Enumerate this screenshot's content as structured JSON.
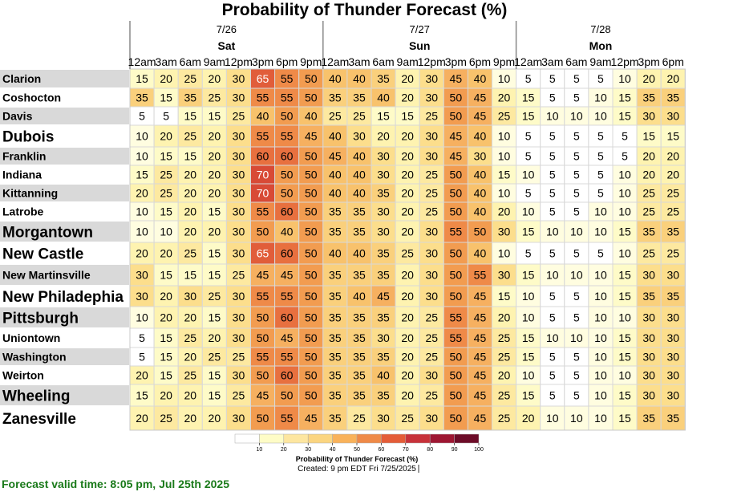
{
  "chart_data": {
    "type": "heatmap",
    "title": "Probability of Thunder Forecast (%)",
    "days": [
      {
        "date": "7/26",
        "name": "Sat",
        "hours": [
          "12am",
          "3am",
          "6am",
          "9am",
          "12pm",
          "3pm",
          "6pm",
          "9pm"
        ]
      },
      {
        "date": "7/27",
        "name": "Sun",
        "hours": [
          "12am",
          "3am",
          "6am",
          "9am",
          "12pm",
          "3pm",
          "6pm",
          "9pm"
        ]
      },
      {
        "date": "7/28",
        "name": "Mon",
        "hours": [
          "12am",
          "3am",
          "6am",
          "9am",
          "12pm",
          "3pm",
          "6pm"
        ]
      }
    ],
    "rows": [
      {
        "city": "Clarion",
        "large": false,
        "values": [
          15,
          20,
          25,
          20,
          30,
          65,
          55,
          50,
          40,
          40,
          35,
          20,
          30,
          45,
          40,
          10,
          5,
          5,
          5,
          5,
          10,
          20,
          20
        ]
      },
      {
        "city": "Coshocton",
        "large": false,
        "values": [
          35,
          15,
          35,
          25,
          30,
          55,
          55,
          50,
          35,
          35,
          40,
          20,
          30,
          50,
          45,
          20,
          15,
          5,
          5,
          10,
          15,
          35,
          35
        ]
      },
      {
        "city": "Davis",
        "large": false,
        "values": [
          5,
          5,
          15,
          15,
          25,
          40,
          50,
          40,
          25,
          25,
          15,
          15,
          25,
          50,
          45,
          25,
          15,
          10,
          10,
          10,
          15,
          30,
          30
        ]
      },
      {
        "city": "Dubois",
        "large": true,
        "values": [
          10,
          20,
          25,
          20,
          30,
          55,
          55,
          45,
          40,
          30,
          20,
          20,
          30,
          45,
          40,
          10,
          5,
          5,
          5,
          5,
          5,
          15,
          15
        ]
      },
      {
        "city": "Franklin",
        "large": false,
        "values": [
          10,
          15,
          15,
          20,
          30,
          60,
          60,
          50,
          45,
          40,
          30,
          20,
          30,
          45,
          30,
          10,
          5,
          5,
          5,
          5,
          5,
          20,
          20
        ]
      },
      {
        "city": "Indiana",
        "large": false,
        "values": [
          15,
          25,
          20,
          20,
          30,
          70,
          50,
          50,
          40,
          40,
          30,
          20,
          25,
          50,
          40,
          15,
          10,
          5,
          5,
          5,
          10,
          20,
          20
        ]
      },
      {
        "city": "Kittanning",
        "large": false,
        "values": [
          20,
          25,
          20,
          20,
          30,
          70,
          50,
          50,
          40,
          40,
          35,
          20,
          25,
          50,
          40,
          10,
          5,
          5,
          5,
          5,
          10,
          25,
          25
        ]
      },
      {
        "city": "Latrobe",
        "large": false,
        "values": [
          10,
          15,
          20,
          15,
          30,
          55,
          60,
          50,
          35,
          35,
          30,
          20,
          25,
          50,
          40,
          20,
          10,
          5,
          5,
          10,
          10,
          25,
          25
        ]
      },
      {
        "city": "Morgantown",
        "large": true,
        "values": [
          10,
          10,
          20,
          20,
          30,
          50,
          40,
          50,
          35,
          35,
          30,
          20,
          30,
          55,
          50,
          30,
          15,
          10,
          10,
          10,
          15,
          35,
          35
        ]
      },
      {
        "city": "New Castle",
        "large": true,
        "values": [
          20,
          20,
          25,
          15,
          30,
          65,
          60,
          50,
          40,
          40,
          35,
          25,
          30,
          50,
          40,
          10,
          5,
          5,
          5,
          5,
          10,
          25,
          25
        ]
      },
      {
        "city": "New Martinsville",
        "large": false,
        "values": [
          30,
          15,
          15,
          15,
          25,
          45,
          45,
          50,
          35,
          35,
          35,
          20,
          30,
          50,
          55,
          30,
          15,
          10,
          10,
          10,
          15,
          30,
          30
        ]
      },
      {
        "city": "New Philadephia",
        "large": true,
        "values": [
          30,
          20,
          30,
          25,
          30,
          55,
          55,
          50,
          35,
          40,
          45,
          20,
          30,
          50,
          45,
          15,
          10,
          5,
          5,
          10,
          15,
          35,
          35
        ]
      },
      {
        "city": "Pittsburgh",
        "large": true,
        "values": [
          10,
          20,
          20,
          15,
          30,
          50,
          60,
          50,
          35,
          35,
          35,
          20,
          25,
          55,
          45,
          20,
          10,
          5,
          5,
          10,
          10,
          30,
          30
        ]
      },
      {
        "city": "Uniontown",
        "large": false,
        "values": [
          5,
          15,
          25,
          20,
          30,
          50,
          45,
          50,
          35,
          35,
          30,
          20,
          25,
          55,
          45,
          25,
          15,
          10,
          10,
          10,
          15,
          30,
          30
        ]
      },
      {
        "city": "Washington",
        "large": false,
        "values": [
          5,
          15,
          20,
          25,
          25,
          55,
          55,
          50,
          35,
          35,
          35,
          20,
          25,
          50,
          45,
          25,
          15,
          5,
          5,
          10,
          15,
          30,
          30
        ]
      },
      {
        "city": "Weirton",
        "large": false,
        "values": [
          20,
          15,
          25,
          15,
          30,
          50,
          60,
          50,
          35,
          35,
          40,
          20,
          30,
          50,
          45,
          20,
          10,
          5,
          5,
          10,
          10,
          30,
          30
        ]
      },
      {
        "city": "Wheeling",
        "large": true,
        "values": [
          15,
          20,
          20,
          15,
          25,
          45,
          50,
          50,
          35,
          35,
          35,
          20,
          25,
          50,
          45,
          25,
          15,
          5,
          5,
          10,
          15,
          30,
          30
        ]
      },
      {
        "city": "Zanesville",
        "large": true,
        "values": [
          20,
          25,
          20,
          20,
          30,
          50,
          55,
          45,
          35,
          25,
          30,
          25,
          30,
          50,
          45,
          25,
          20,
          10,
          10,
          10,
          15,
          35,
          35
        ]
      }
    ],
    "colorbar": {
      "ticks": [
        "10",
        "20",
        "30",
        "40",
        "50",
        "60",
        "70",
        "80",
        "90",
        "100"
      ],
      "colors": [
        "#ffffff",
        "#fefcc6",
        "#fde6a0",
        "#fbd580",
        "#f9b25a",
        "#ef8a48",
        "#e45c38",
        "#c7323a",
        "#9e1732",
        "#6d0c28"
      ],
      "label": "Probability of Thunder Forecast (%)",
      "created": "Created: 9 pm EDT Fri 7/25/2025"
    }
  },
  "footer": {
    "valid_time": "Forecast valid time: 8:05 pm, Jul 25th 2025",
    "color": "#1a7a1a"
  }
}
